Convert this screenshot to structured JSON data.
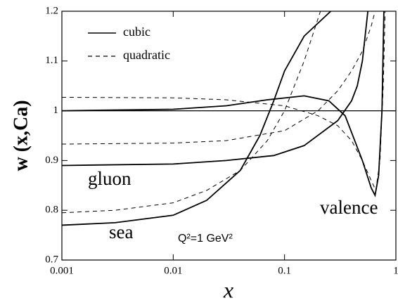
{
  "chart_data": {
    "type": "line",
    "xlabel": "x",
    "ylabel": "w (x,Ca)",
    "log_x": true,
    "xlim": [
      0.001,
      1
    ],
    "xticks": [
      0.001,
      0.01,
      0.1,
      1
    ],
    "ylim": [
      0.7,
      1.2
    ],
    "yticks": [
      0.7,
      0.8,
      0.9,
      1,
      1.1,
      1.2
    ],
    "hline": 1,
    "legend": [
      {
        "name": "cubic",
        "dash": "solid"
      },
      {
        "name": "quadratic",
        "dash": "dashed"
      }
    ],
    "annotations": [
      "gluon",
      "sea",
      "valence",
      "Q²=1 GeV²"
    ],
    "series": [
      {
        "dash": "solid",
        "color": "#000",
        "x": [
          0.001,
          0.01,
          0.03,
          0.07,
          0.15,
          0.25,
          0.35,
          0.5,
          0.6,
          0.65,
          0.7,
          0.75,
          0.78
        ],
        "values": [
          1.0,
          1.003,
          1.01,
          1.022,
          1.03,
          1.02,
          0.99,
          0.9,
          0.845,
          0.83,
          0.87,
          1.0,
          1.2
        ]
      },
      {
        "dash": "dashed",
        "color": "#000",
        "x": [
          0.001,
          0.01,
          0.03,
          0.1,
          0.2,
          0.3,
          0.4,
          0.5,
          0.6,
          0.66,
          0.72,
          0.77,
          0.8
        ],
        "values": [
          1.027,
          1.026,
          1.022,
          1.01,
          0.99,
          0.97,
          0.94,
          0.9,
          0.86,
          0.84,
          0.9,
          1.05,
          1.2
        ]
      },
      {
        "dash": "solid",
        "color": "#000",
        "x": [
          0.001,
          0.01,
          0.03,
          0.08,
          0.15,
          0.3,
          0.4,
          0.45,
          0.5,
          0.56
        ],
        "values": [
          0.89,
          0.893,
          0.9,
          0.91,
          0.93,
          0.98,
          1.02,
          1.05,
          1.1,
          1.2
        ]
      },
      {
        "dash": "dashed",
        "color": "#000",
        "x": [
          0.001,
          0.01,
          0.03,
          0.1,
          0.2,
          0.3,
          0.4,
          0.5,
          0.6,
          0.65
        ],
        "values": [
          0.933,
          0.935,
          0.94,
          0.96,
          1.0,
          1.04,
          1.08,
          1.12,
          1.17,
          1.2
        ]
      },
      {
        "dash": "solid",
        "color": "#000",
        "x": [
          0.001,
          0.003,
          0.01,
          0.02,
          0.04,
          0.06,
          0.08,
          0.1,
          0.15,
          0.26
        ],
        "values": [
          0.77,
          0.775,
          0.79,
          0.82,
          0.88,
          0.95,
          1.02,
          1.08,
          1.15,
          1.2
        ]
      },
      {
        "dash": "dashed",
        "color": "#000",
        "x": [
          0.001,
          0.003,
          0.01,
          0.02,
          0.04,
          0.07,
          0.1,
          0.15,
          0.21
        ],
        "values": [
          0.795,
          0.8,
          0.815,
          0.84,
          0.88,
          0.94,
          1.0,
          1.1,
          1.2
        ]
      }
    ]
  }
}
